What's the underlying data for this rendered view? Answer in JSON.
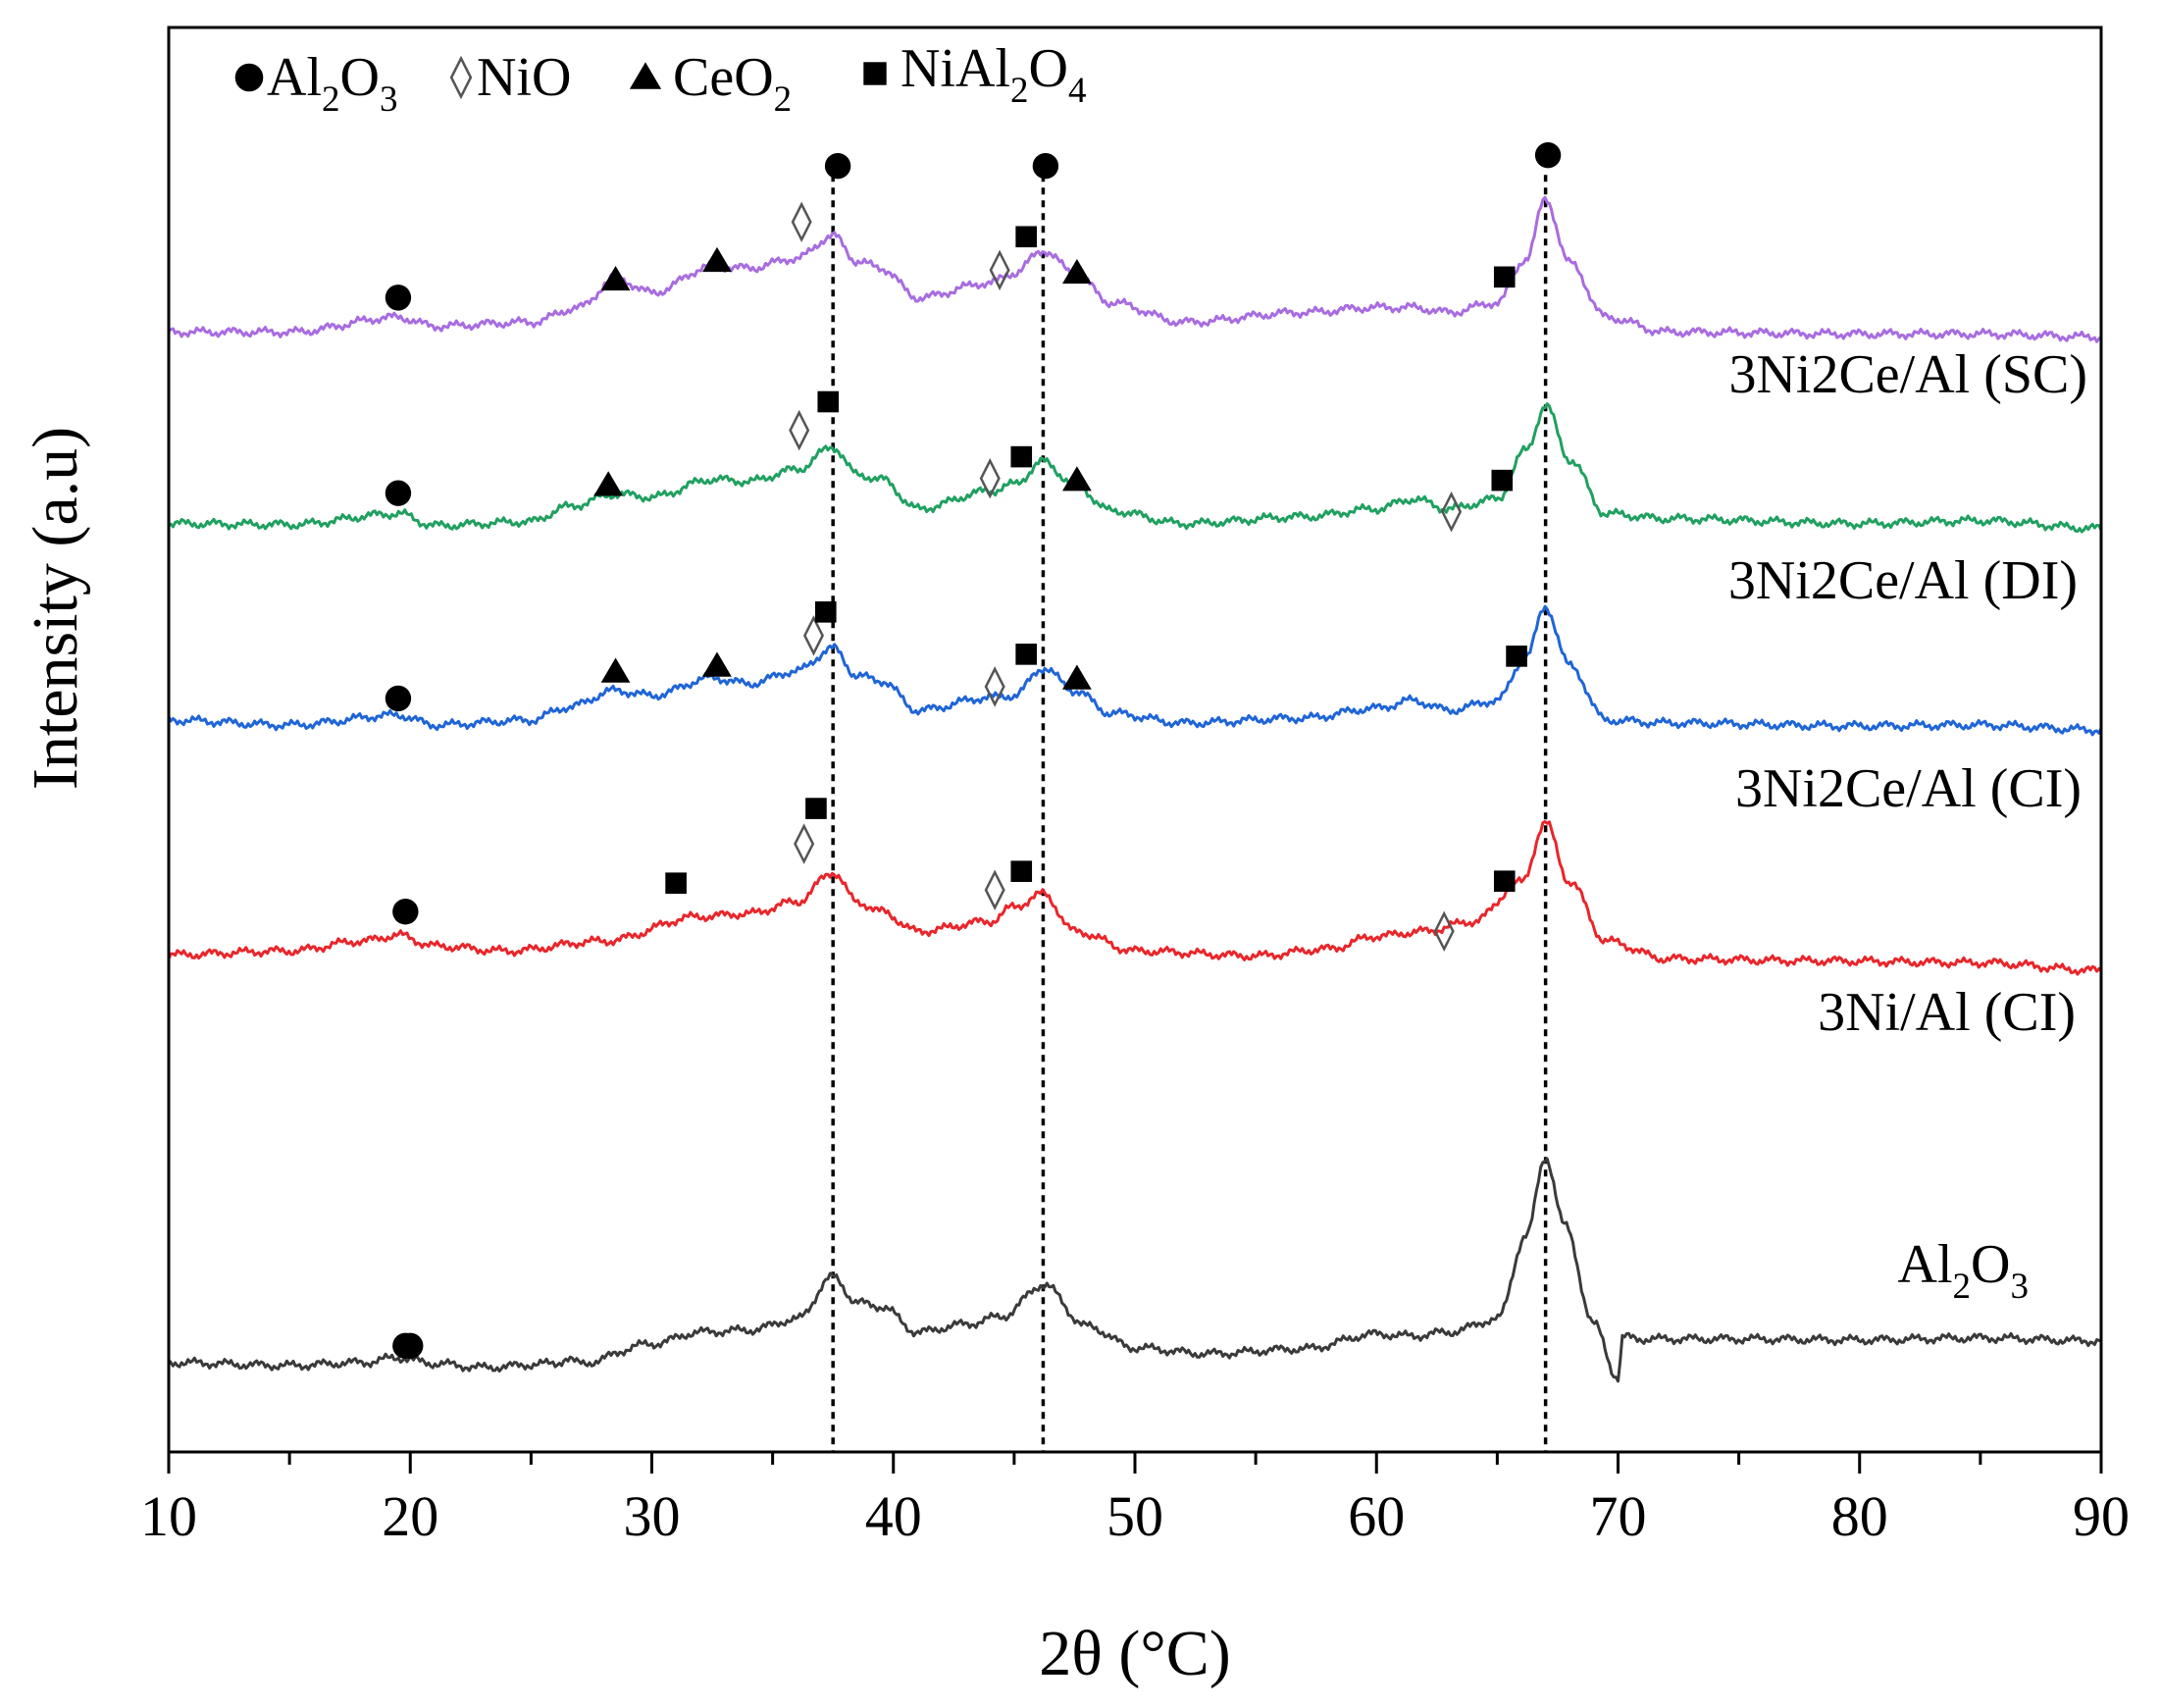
{
  "chart_data": {
    "type": "line",
    "title": "",
    "xlabel": "2θ (°C)",
    "ylabel": "Intensity (a.u)",
    "xlim": [
      10,
      90
    ],
    "xticks": [
      10,
      20,
      30,
      40,
      50,
      60,
      70,
      80,
      90
    ],
    "yticks_shown": false,
    "reference_lines_x": [
      37.5,
      46.2,
      67.0
    ],
    "legend": [
      {
        "key": "al2o3",
        "marker": "circle",
        "parts": [
          {
            "t": "Al"
          },
          {
            "t": "2",
            "sub": true
          },
          {
            "t": "O"
          },
          {
            "t": "3",
            "sub": true
          }
        ]
      },
      {
        "key": "nio",
        "marker": "diamond",
        "parts": [
          {
            "t": "NiO"
          }
        ]
      },
      {
        "key": "ceo2",
        "marker": "triangle",
        "parts": [
          {
            "t": "CeO"
          },
          {
            "t": "2",
            "sub": true
          }
        ]
      },
      {
        "key": "nial2o4",
        "marker": "square",
        "parts": [
          {
            "t": "NiAl"
          },
          {
            "t": "2",
            "sub": true
          },
          {
            "t": "O"
          },
          {
            "t": "4",
            "sub": true
          }
        ]
      }
    ],
    "series": [
      {
        "name": "Al2O3",
        "color": "#3a3a3a",
        "label_parts": [
          {
            "t": "Al"
          },
          {
            "t": "2",
            "sub": true
          },
          {
            "t": "O"
          },
          {
            "t": "3",
            "sub": true
          }
        ],
        "x": [
          10,
          15,
          18,
          19.5,
          21,
          23,
          26,
          26.5,
          27,
          30,
          32,
          34,
          36,
          37.5,
          38.5,
          39.5,
          41,
          43,
          44.5,
          46.2,
          48,
          50,
          53,
          57,
          60,
          61.5,
          63,
          65,
          66.2,
          67,
          67.8,
          69,
          70,
          70.2,
          71,
          75,
          80,
          85,
          90
        ],
        "y": [
          91,
          88,
          91,
          96,
          90,
          86,
          90,
          95,
          90,
          110,
          122,
          124,
          135,
          178,
          152,
          148,
          122,
          130,
          138,
          170,
          128,
          106,
          100,
          105,
          120,
          118,
          122,
          135,
          220,
          300,
          230,
          130,
          75,
          117,
          115,
          115,
          114,
          116,
          113
        ]
      },
      {
        "name": "3Ni/Al (CI)",
        "color": "#e8262b",
        "label_parts": [
          {
            "t": "3Ni/Al (CI)"
          }
        ],
        "x": [
          10,
          15,
          18,
          19.5,
          21,
          24,
          28,
          32,
          34,
          36,
          37.5,
          38.5,
          39.5,
          41,
          44,
          45,
          46.2,
          47.5,
          50,
          55,
          58,
          60,
          62,
          64,
          66,
          67,
          68,
          69.5,
          72,
          78,
          85,
          90
        ],
        "y": [
          506,
          510,
          520,
          526,
          515,
          510,
          520,
          545,
          548,
          560,
          590,
          560,
          550,
          530,
          540,
          555,
          568,
          530,
          510,
          505,
          512,
          525,
          530,
          540,
          580,
          640,
          580,
          520,
          502,
          500,
          498,
          490
        ]
      },
      {
        "name": "3Ni2Ce/Al (CI)",
        "color": "#1f65d6",
        "label_parts": [
          {
            "t": "3Ni2Ce/Al (CI)"
          }
        ],
        "x": [
          10,
          15,
          19.5,
          21,
          25,
          26.5,
          28.5,
          30,
          32.5,
          34,
          36,
          37.5,
          38.5,
          39.5,
          41,
          44,
          45,
          46.2,
          47.5,
          49,
          52,
          57,
          60,
          61.5,
          63,
          65,
          66.2,
          67,
          68,
          69.5,
          72,
          80,
          85,
          90
        ],
        "y": [
          745,
          740,
          750,
          740,
          745,
          758,
          775,
          770,
          788,
          782,
          795,
          818,
          790,
          785,
          755,
          768,
          770,
          798,
          775,
          752,
          742,
          747,
          757,
          765,
          755,
          765,
          810,
          860,
          800,
          745,
          742,
          739,
          740,
          735
        ]
      },
      {
        "name": "3Ni2Ce/Al (DI)",
        "color": "#20a060",
        "label_parts": [
          {
            "t": "3Ni2Ce/Al (DI)"
          }
        ],
        "x": [
          10,
          15,
          19.5,
          21,
          25,
          26.5,
          28.5,
          30,
          32.5,
          34,
          36,
          37.5,
          38.5,
          39.5,
          41,
          44,
          45,
          46.2,
          47.5,
          49,
          52,
          57,
          60,
          61.5,
          63,
          65,
          66.2,
          67,
          68,
          69.5,
          72,
          80,
          85,
          90
        ],
        "y": [
          945,
          944,
          955,
          943,
          947,
          962,
          975,
          972,
          990,
          988,
          1000,
          1023,
          995,
          990,
          960,
          978,
          985,
          1008,
          985,
          958,
          945,
          952,
          960,
          970,
          960,
          970,
          1020,
          1065,
          1010,
          955,
          950,
          945,
          948,
          940
        ]
      },
      {
        "name": "3Ni2Ce/Al (SC)",
        "color": "#a86ce0",
        "label_parts": [
          {
            "t": "3Ni2Ce/Al (SC)"
          }
        ],
        "x": [
          10,
          15,
          19.5,
          21,
          25,
          27,
          28.5,
          30,
          32.5,
          34,
          36,
          37.5,
          38.5,
          39.5,
          41,
          44,
          45,
          46.2,
          47.5,
          49,
          52,
          57,
          60,
          61.5,
          63,
          65,
          66.2,
          67,
          68,
          69.5,
          72,
          80,
          85,
          90
        ],
        "y": [
          1140,
          1140,
          1155,
          1146,
          1150,
          1165,
          1195,
          1180,
          1207,
          1205,
          1215,
          1238,
          1212,
          1205,
          1175,
          1190,
          1200,
          1223,
          1200,
          1170,
          1150,
          1160,
          1165,
          1165,
          1160,
          1170,
          1215,
          1275,
          1210,
          1155,
          1140,
          1138,
          1138,
          1135
        ]
      }
    ],
    "markers": [
      {
        "type": "circle",
        "x": 19.8,
        "y": 108
      },
      {
        "type": "circle",
        "x": 19.8,
        "y": 550
      },
      {
        "type": "square",
        "x": 31,
        "y": 579
      },
      {
        "type": "diamond",
        "x": 36.3,
        "y": 619
      },
      {
        "type": "square",
        "x": 36.8,
        "y": 655
      },
      {
        "type": "diamond",
        "x": 44.2,
        "y": 572
      },
      {
        "type": "square",
        "x": 45.3,
        "y": 591
      },
      {
        "type": "diamond",
        "x": 62.8,
        "y": 530
      },
      {
        "type": "square",
        "x": 65.3,
        "y": 581
      },
      {
        "type": "circle",
        "x": 19.5,
        "y": 767
      },
      {
        "type": "triangle",
        "x": 28.5,
        "y": 794
      },
      {
        "type": "triangle",
        "x": 32.7,
        "y": 800
      },
      {
        "type": "diamond",
        "x": 36.7,
        "y": 831
      },
      {
        "type": "square",
        "x": 37.2,
        "y": 855
      },
      {
        "type": "diamond",
        "x": 44.2,
        "y": 779
      },
      {
        "type": "square",
        "x": 45.5,
        "y": 812
      },
      {
        "type": "triangle",
        "x": 47.6,
        "y": 787
      },
      {
        "type": "square",
        "x": 65.8,
        "y": 810
      },
      {
        "type": "circle",
        "x": 19.5,
        "y": 976
      },
      {
        "type": "triangle",
        "x": 28.2,
        "y": 984
      },
      {
        "type": "diamond",
        "x": 36.1,
        "y": 1040
      },
      {
        "type": "square",
        "x": 37.3,
        "y": 1069
      },
      {
        "type": "diamond",
        "x": 44,
        "y": 991
      },
      {
        "type": "square",
        "x": 45.3,
        "y": 1013
      },
      {
        "type": "triangle",
        "x": 47.6,
        "y": 989
      },
      {
        "type": "diamond",
        "x": 63.1,
        "y": 957
      },
      {
        "type": "square",
        "x": 65.2,
        "y": 989
      },
      {
        "type": "circle",
        "x": 19.5,
        "y": 1175
      },
      {
        "type": "triangle",
        "x": 28.5,
        "y": 1193
      },
      {
        "type": "triangle",
        "x": 32.7,
        "y": 1212
      },
      {
        "type": "diamond",
        "x": 36.2,
        "y": 1252
      },
      {
        "type": "circle",
        "x": 37.7,
        "y": 1309
      },
      {
        "type": "square",
        "x": 45.5,
        "y": 1237
      },
      {
        "type": "diamond",
        "x": 44.4,
        "y": 1203
      },
      {
        "type": "circle",
        "x": 46.3,
        "y": 1309
      },
      {
        "type": "triangle",
        "x": 47.6,
        "y": 1200
      },
      {
        "type": "square",
        "x": 65.3,
        "y": 1196
      },
      {
        "type": "circle",
        "x": 67.1,
        "y": 1320
      },
      {
        "type": "circle",
        "x": 20,
        "y": 108
      }
    ]
  }
}
